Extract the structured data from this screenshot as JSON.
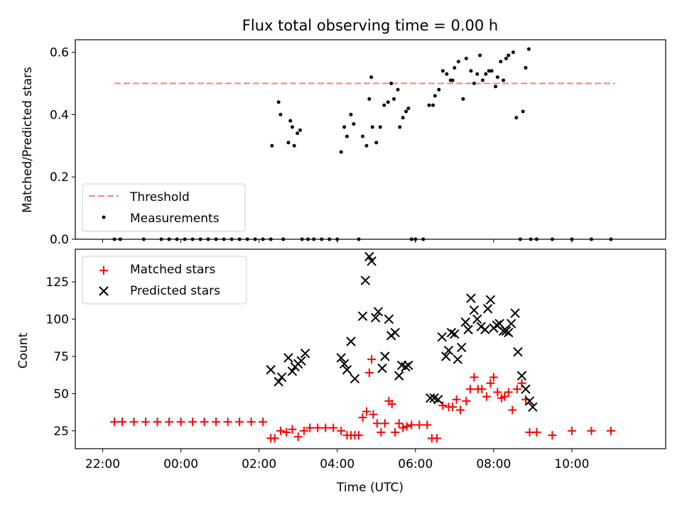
{
  "chart_data": [
    {
      "type": "scatter",
      "title": "Flux total observing time = 0.00 h",
      "xlabel": "",
      "ylabel": "Matched/Predicted stars",
      "xlim": [
        -2.7,
        12.4
      ],
      "ylim": [
        0,
        0.64
      ],
      "x_unit": "hours relative to 00:00 UTC (tick labels shown as HH:MM)",
      "yticks": [
        0.0,
        0.2,
        0.4,
        0.6
      ],
      "ytick_labels": [
        "0.0",
        "0.2",
        "0.4",
        "0.6"
      ],
      "legend_position": "lower-left",
      "grid": false,
      "threshold": {
        "name": "Threshold",
        "value": 0.5,
        "x_range": [
          -1.7,
          11.1
        ],
        "color": "#ff7f7f"
      },
      "series": [
        {
          "name": "Measurements",
          "color": "#000000",
          "x": [
            -1.7,
            -1.55,
            -0.95,
            -0.5,
            -0.3,
            -0.1,
            0.1,
            0.3,
            0.5,
            0.7,
            0.9,
            1.1,
            1.3,
            1.5,
            1.7,
            1.9,
            2.1,
            2.3,
            2.33,
            2.5,
            2.55,
            2.62,
            2.75,
            2.8,
            2.85,
            2.9,
            2.98,
            3.05,
            3.1,
            3.25,
            3.4,
            3.6,
            3.8,
            4.0,
            4.1,
            4.18,
            4.25,
            4.35,
            4.42,
            4.55,
            4.65,
            4.75,
            4.82,
            4.87,
            4.9,
            5.0,
            5.1,
            5.2,
            5.3,
            5.38,
            5.45,
            5.55,
            5.6,
            5.68,
            5.76,
            5.82,
            5.9,
            6.0,
            6.2,
            6.35,
            6.45,
            6.5,
            6.6,
            6.7,
            6.8,
            6.9,
            6.95,
            7.0,
            7.1,
            7.22,
            7.3,
            7.42,
            7.5,
            7.58,
            7.65,
            7.72,
            7.8,
            7.88,
            7.95,
            8.05,
            8.1,
            8.18,
            8.25,
            8.32,
            8.38,
            8.5,
            8.58,
            8.68,
            8.75,
            8.82,
            8.9,
            8.95,
            9.1,
            9.5,
            10.0,
            10.5,
            11.0
          ],
          "y": [
            0,
            0,
            0,
            0,
            0,
            0,
            0,
            0,
            0,
            0,
            0,
            0,
            0,
            0,
            0,
            0,
            0,
            0,
            0.3,
            0.44,
            0.4,
            0,
            0.31,
            0.38,
            0.36,
            0.3,
            0.34,
            0.35,
            0,
            0,
            0,
            0,
            0,
            0,
            0.28,
            0.36,
            0.33,
            0.4,
            0.37,
            0,
            0.33,
            0.3,
            0.45,
            0.52,
            0.36,
            0.31,
            0.36,
            0.43,
            0.44,
            0.5,
            0.45,
            0.48,
            0.36,
            0.39,
            0.41,
            0.42,
            0,
            0,
            0,
            0.43,
            0.43,
            0.46,
            0.48,
            0.54,
            0.53,
            0.51,
            0.51,
            0.55,
            0.57,
            0.45,
            0.58,
            0.54,
            0.5,
            0.53,
            0.59,
            0.51,
            0.53,
            0.54,
            0.54,
            0.49,
            0.52,
            0.57,
            0.51,
            0.58,
            0.59,
            0.6,
            0.39,
            0,
            0.41,
            0.55,
            0.61,
            0,
            0,
            0,
            0,
            0,
            0
          ]
        }
      ]
    },
    {
      "type": "scatter",
      "title": "",
      "xlabel": "Time (UTC)",
      "ylabel": "Count",
      "xlim": [
        -2.7,
        12.4
      ],
      "ylim": [
        13,
        147
      ],
      "x_unit": "hours relative to 00:00 UTC (tick labels shown as HH:MM)",
      "xticks": [
        -2,
        0,
        2,
        4,
        6,
        8,
        10
      ],
      "xtick_labels": [
        "22:00",
        "00:00",
        "02:00",
        "04:00",
        "06:00",
        "08:00",
        "10:00"
      ],
      "yticks": [
        25,
        50,
        75,
        100,
        125
      ],
      "ytick_labels": [
        "25",
        "50",
        "75",
        "100",
        "125"
      ],
      "legend_position": "upper-left",
      "grid": false,
      "series": [
        {
          "name": "Matched stars",
          "marker": "+",
          "color": "#ff0000",
          "x": [
            -1.7,
            -1.5,
            -1.2,
            -0.9,
            -0.6,
            -0.3,
            0.0,
            0.3,
            0.6,
            0.9,
            1.2,
            1.5,
            1.8,
            2.1,
            2.3,
            2.4,
            2.55,
            2.7,
            2.85,
            3.0,
            3.15,
            3.3,
            3.5,
            3.7,
            3.9,
            4.1,
            4.25,
            4.35,
            4.45,
            4.55,
            4.65,
            4.75,
            4.82,
            4.88,
            4.92,
            5.02,
            5.12,
            5.22,
            5.32,
            5.4,
            5.48,
            5.58,
            5.68,
            5.78,
            5.9,
            6.1,
            6.3,
            6.42,
            6.55,
            6.7,
            6.85,
            6.95,
            7.05,
            7.15,
            7.3,
            7.4,
            7.5,
            7.6,
            7.7,
            7.82,
            7.92,
            8.0,
            8.1,
            8.2,
            8.28,
            8.38,
            8.48,
            8.6,
            8.72,
            8.82,
            8.92,
            9.1,
            9.5,
            10.0,
            10.5,
            11.0
          ],
          "y": [
            31,
            31,
            31,
            31,
            31,
            31,
            31,
            31,
            31,
            31,
            31,
            31,
            31,
            31,
            20,
            20,
            25,
            24,
            26,
            21,
            25,
            27,
            27,
            27,
            27,
            25,
            22,
            22,
            22,
            22,
            34,
            38,
            64,
            73,
            36,
            30,
            24,
            30,
            45,
            43,
            24,
            30,
            27,
            28,
            29,
            29,
            29,
            20,
            20,
            42,
            41,
            41,
            46,
            39,
            45,
            53,
            61,
            53,
            53,
            48,
            57,
            61,
            51,
            47,
            48,
            51,
            39,
            53,
            57,
            46,
            24,
            24,
            22,
            25,
            25,
            25
          ]
        },
        {
          "name": "Predicted stars",
          "marker": "x",
          "color": "#000000",
          "x": [
            2.3,
            2.5,
            2.58,
            2.75,
            2.85,
            2.92,
            3.0,
            3.08,
            3.18,
            4.1,
            4.18,
            4.25,
            4.35,
            4.45,
            4.65,
            4.72,
            4.82,
            4.88,
            4.98,
            5.05,
            5.15,
            5.22,
            5.32,
            5.38,
            5.48,
            5.58,
            5.65,
            5.75,
            5.82,
            6.38,
            6.48,
            6.58,
            6.68,
            6.78,
            6.85,
            6.92,
            7.0,
            7.08,
            7.18,
            7.28,
            7.35,
            7.42,
            7.5,
            7.58,
            7.68,
            7.78,
            7.85,
            7.92,
            8.0,
            8.08,
            8.15,
            8.25,
            8.32,
            8.38,
            8.45,
            8.55,
            8.62,
            8.72,
            8.82,
            8.92,
            9.0
          ],
          "y": [
            66,
            58,
            61,
            74,
            65,
            68,
            70,
            72,
            77,
            74,
            70,
            66,
            85,
            60,
            102,
            126,
            142,
            139,
            101,
            105,
            67,
            75,
            100,
            89,
            91,
            62,
            69,
            68,
            69,
            47,
            47,
            46,
            88,
            75,
            79,
            91,
            90,
            73,
            81,
            98,
            93,
            114,
            106,
            100,
            95,
            93,
            107,
            113,
            94,
            96,
            97,
            92,
            92,
            91,
            97,
            104,
            78,
            62,
            53,
            45,
            41
          ]
        }
      ]
    }
  ]
}
